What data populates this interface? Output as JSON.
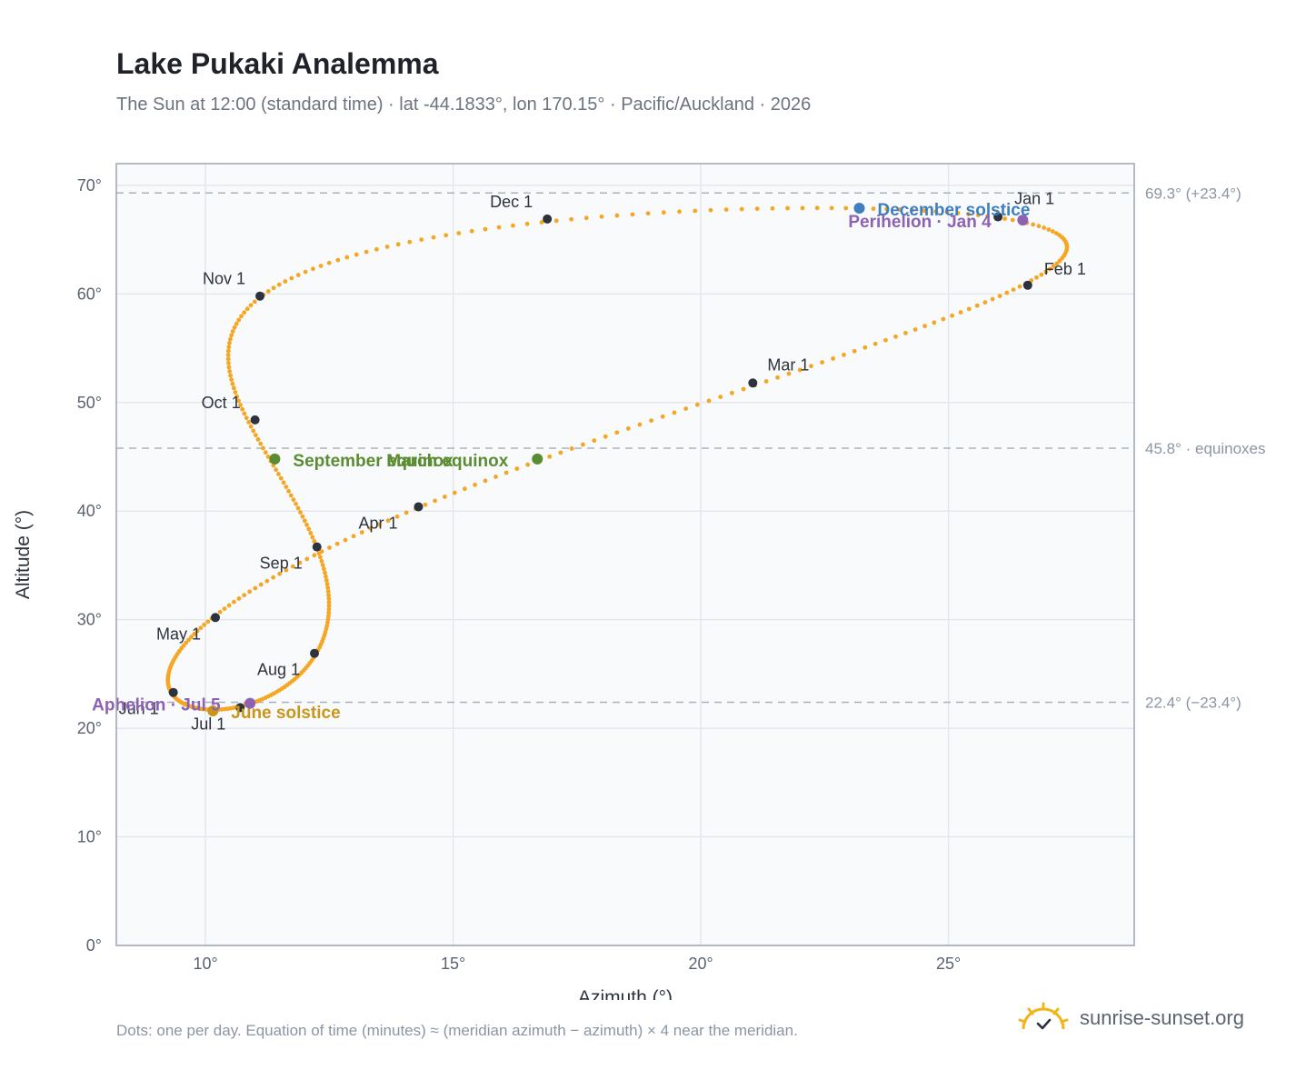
{
  "title": "Lake Pukaki Analemma",
  "subtitle": "The Sun at 12:00 (standard time) · lat -44.1833°, lon 170.15° · Pacific/Auckland · 2026",
  "footnote": "Dots: one per day. Equation of time (minutes) ≈ (meridian azimuth − azimuth) × 4 near the meridian.",
  "brand": {
    "name": "sunrise-sunset.org",
    "icon": "sun-logo-icon"
  },
  "colors": {
    "curve": "#f5a623",
    "month_marker": "#2d333d",
    "equinox": "#5b8c32",
    "june_solstice": "#c9961a",
    "december_solstice": "#3f7ec0",
    "apsis": "#8e62b3",
    "plot_bg": "#f8fafc",
    "grid": "#e3e8ee",
    "reference": "#a9b3bf"
  },
  "chart_data": {
    "type": "scatter",
    "xlabel": "Azimuth (°)",
    "ylabel": "Altitude (°)",
    "xlim": [
      8.2,
      28.75
    ],
    "ylim": [
      0,
      72
    ],
    "xticks": [
      10,
      15,
      20,
      25
    ],
    "xtick_labels": [
      "10°",
      "15°",
      "20°",
      "25°"
    ],
    "yticks": [
      0,
      10,
      20,
      30,
      40,
      50,
      60,
      70
    ],
    "ytick_labels": [
      "0°",
      "10°",
      "20°",
      "30°",
      "40°",
      "50°",
      "60°",
      "70°"
    ],
    "grid": true,
    "reference_lines": [
      {
        "y": 69.3,
        "label": "69.3° (+23.4°)"
      },
      {
        "y": 45.8,
        "label": "45.8° · equinoxes"
      },
      {
        "y": 22.4,
        "label": "22.4° (−23.4°)"
      }
    ],
    "month_markers": [
      {
        "label": "Jan 1",
        "x": 26.0,
        "y": 67.1
      },
      {
        "label": "Feb 1",
        "x": 26.6,
        "y": 60.8
      },
      {
        "label": "Mar 1",
        "x": 21.05,
        "y": 51.8
      },
      {
        "label": "Apr 1",
        "x": 14.3,
        "y": 40.4
      },
      {
        "label": "May 1",
        "x": 10.2,
        "y": 30.2
      },
      {
        "label": "Jun 1",
        "x": 9.35,
        "y": 23.3
      },
      {
        "label": "Jul 1",
        "x": 10.7,
        "y": 21.9
      },
      {
        "label": "Aug 1",
        "x": 12.2,
        "y": 26.9
      },
      {
        "label": "Sep 1",
        "x": 12.25,
        "y": 36.7
      },
      {
        "label": "Oct 1",
        "x": 11.0,
        "y": 48.4
      },
      {
        "label": "Nov 1",
        "x": 11.1,
        "y": 59.8
      },
      {
        "label": "Dec 1",
        "x": 16.9,
        "y": 66.9
      }
    ],
    "events": [
      {
        "label": "March equinox",
        "x": 16.7,
        "y": 44.8,
        "color": "#5b8c32"
      },
      {
        "label": "September equinox",
        "x": 11.4,
        "y": 44.8,
        "color": "#5b8c32"
      },
      {
        "label": "June solstice",
        "x": 10.15,
        "y": 21.6,
        "color": "#c9961a"
      },
      {
        "label": "December solstice",
        "x": 23.2,
        "y": 67.9,
        "color": "#3f7ec0"
      },
      {
        "label": "Perihelion · Jan 4",
        "x": 26.5,
        "y": 66.8,
        "color": "#8e62b3"
      },
      {
        "label": "Aphelion · Jul 5",
        "x": 10.9,
        "y": 22.3,
        "color": "#8e62b3"
      }
    ]
  }
}
